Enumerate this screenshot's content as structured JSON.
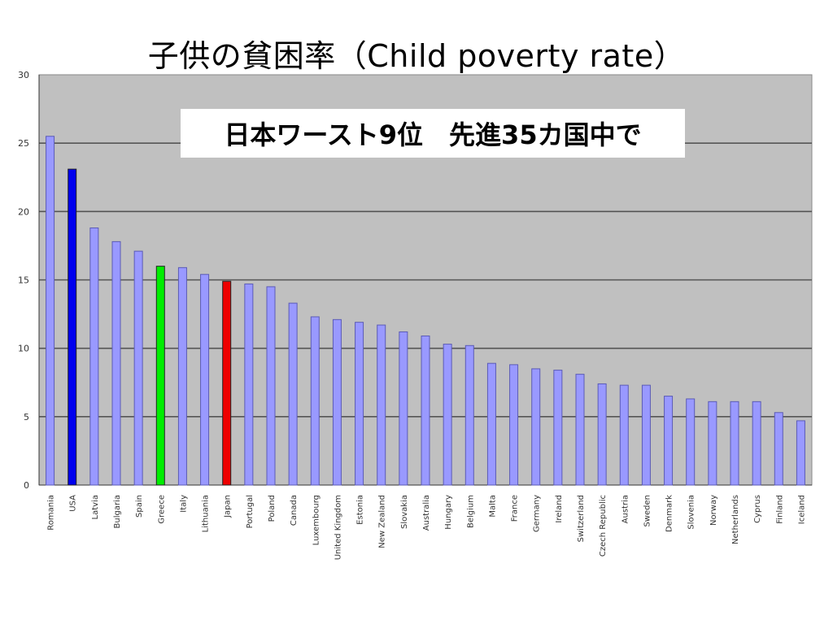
{
  "title": "子供の貧困率（Child poverty rate）",
  "callout": "日本ワースト9位　先進35カ国中で",
  "colors": {
    "plot_bg": "#c0c0c0",
    "gridline": "#555555",
    "default_bar": "#9999ff",
    "bar_outline": "#5b5bb5",
    "highlight_usa": "#0000ee",
    "highlight_greece": "#00ee00",
    "highlight_japan": "#ee0000"
  },
  "chart_data": {
    "type": "bar",
    "title": "",
    "xlabel": "",
    "ylabel": "",
    "ylim": [
      0,
      30
    ],
    "yticks": [
      0,
      5,
      10,
      15,
      20,
      25,
      30
    ],
    "grid": true,
    "categories": [
      "Romania",
      "USA",
      "Latvia",
      "Bulgaria",
      "Spain",
      "Greece",
      "Italy",
      "Lithuania",
      "Japan",
      "Portugal",
      "Poland",
      "Canada",
      "Luxembourg",
      "United Kingdom",
      "Estonia",
      "New Zealand",
      "Slovakia",
      "Australia",
      "Hungary",
      "Belgium",
      "Malta",
      "France",
      "Germany",
      "Ireland",
      "Switzerland",
      "Czech Republic",
      "Austria",
      "Sweden",
      "Denmark",
      "Slovenia",
      "Norway",
      "Netherlands",
      "Cyprus",
      "Finland",
      "Iceland"
    ],
    "values": [
      25.5,
      23.1,
      18.8,
      17.8,
      17.1,
      16.0,
      15.9,
      15.4,
      14.9,
      14.7,
      14.5,
      13.3,
      12.3,
      12.1,
      11.9,
      11.7,
      11.2,
      10.9,
      10.3,
      10.2,
      8.9,
      8.8,
      8.5,
      8.4,
      8.1,
      7.4,
      7.3,
      7.3,
      6.5,
      6.3,
      6.1,
      6.1,
      6.1,
      5.3,
      4.7
    ],
    "highlights": {
      "USA": "#0000ee",
      "Greece": "#00ee00",
      "Japan": "#ee0000"
    }
  }
}
